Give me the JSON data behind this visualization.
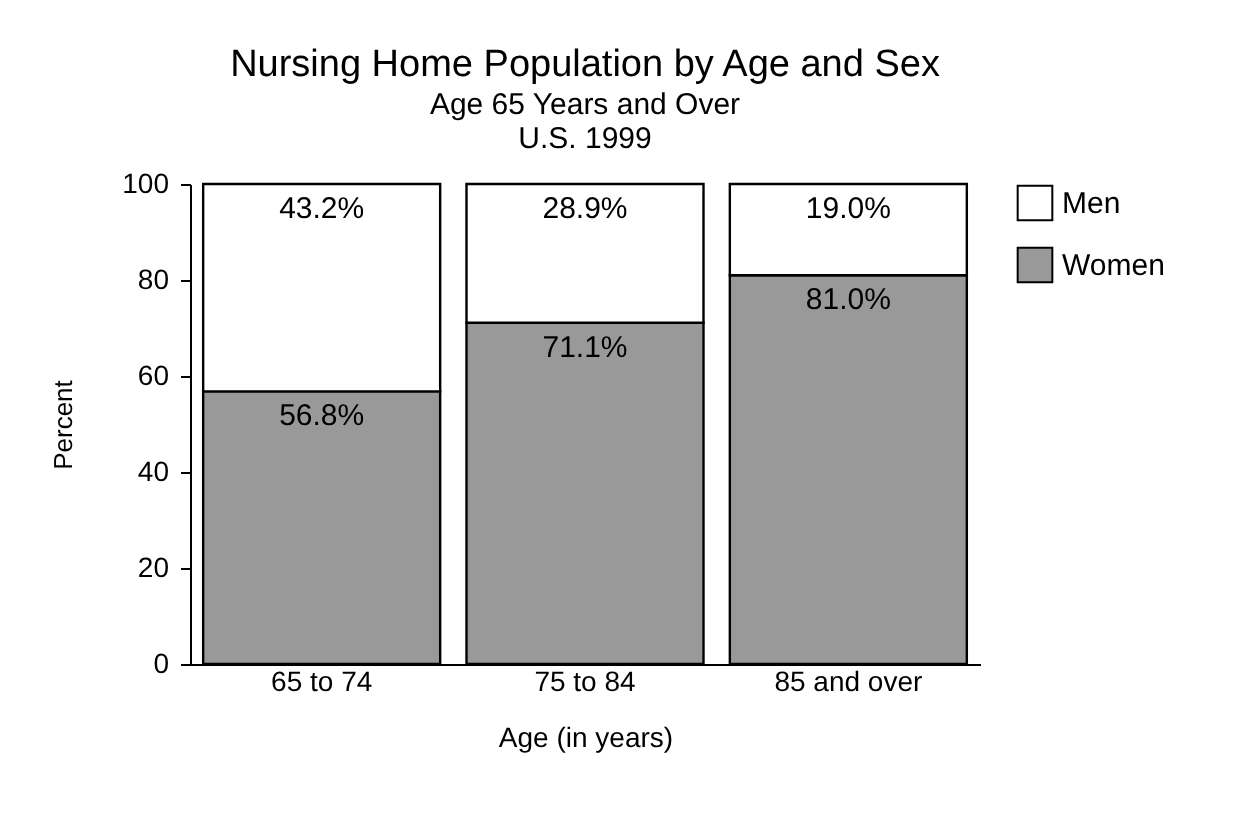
{
  "chart_data": {
    "type": "bar",
    "title": "Nursing Home Population by Age and Sex",
    "subtitle": "Age 65 Years and Over\nU.S. 1999",
    "xlabel": "Age (in years)",
    "ylabel": "Percent",
    "categories": [
      "65 to 74",
      "75 to 84",
      "85 and over"
    ],
    "series": [
      {
        "name": "Women",
        "color": "#999999",
        "values": [
          56.8,
          71.1,
          81.0
        ],
        "value_labels": [
          "56.8%",
          "71.1%",
          "81.0%"
        ]
      },
      {
        "name": "Men",
        "color": "#ffffff",
        "values": [
          43.2,
          28.9,
          19.0
        ],
        "value_labels": [
          "43.2%",
          "28.9%",
          "19.0%"
        ]
      }
    ],
    "stacked": true,
    "ylim": [
      0,
      100
    ],
    "yticks": [
      0,
      20,
      40,
      60,
      80,
      100
    ],
    "grid": false,
    "legend": "right"
  }
}
